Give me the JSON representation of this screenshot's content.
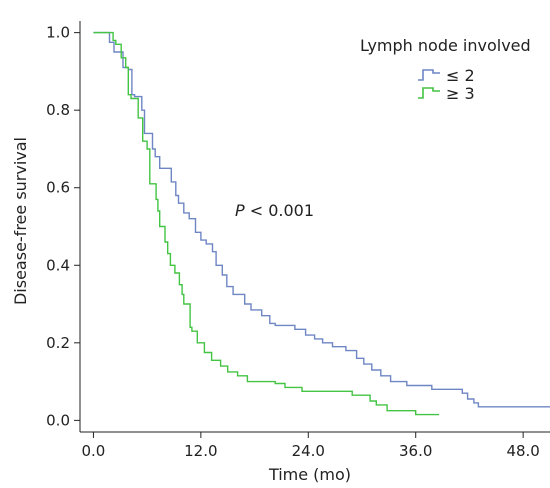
{
  "chart_data": {
    "type": "line",
    "step": true,
    "title": "",
    "xlabel": "Time (mo)",
    "ylabel": "Disease-free survival",
    "xlim": [
      -1.5,
      51
    ],
    "ylim": [
      -0.03,
      1.03
    ],
    "xticks": [
      0,
      12,
      24,
      36,
      48
    ],
    "xtick_labels": [
      "0.0",
      "12.0",
      "24.0",
      "36.0",
      "48.0"
    ],
    "yticks": [
      0,
      0.2,
      0.4,
      0.6,
      0.8,
      1.0
    ],
    "ytick_labels": [
      "0.0",
      "0.2",
      "0.4",
      "0.6",
      "0.8",
      "1.0"
    ],
    "grid": false,
    "legend": {
      "title": "Lymph node involved",
      "position": "top-right"
    },
    "annotation": {
      "p_italic": "P",
      "text": " < 0.001",
      "x": 15.5,
      "y": 0.535
    },
    "series": [
      {
        "name": "≤ 2",
        "color": "#6f86c4",
        "points": [
          [
            0,
            1.0
          ],
          [
            1.8,
            0.975
          ],
          [
            2.3,
            0.95
          ],
          [
            3.3,
            0.91
          ],
          [
            3.9,
            0.905
          ],
          [
            4.3,
            0.84
          ],
          [
            4.6,
            0.835
          ],
          [
            5.4,
            0.8
          ],
          [
            5.7,
            0.74
          ],
          [
            6.6,
            0.7
          ],
          [
            6.9,
            0.68
          ],
          [
            7.4,
            0.65
          ],
          [
            8.7,
            0.615
          ],
          [
            9.2,
            0.58
          ],
          [
            9.5,
            0.56
          ],
          [
            10.1,
            0.535
          ],
          [
            10.7,
            0.52
          ],
          [
            11.4,
            0.485
          ],
          [
            12.0,
            0.465
          ],
          [
            12.6,
            0.455
          ],
          [
            13.3,
            0.435
          ],
          [
            13.7,
            0.4
          ],
          [
            14.4,
            0.375
          ],
          [
            14.9,
            0.345
          ],
          [
            15.6,
            0.325
          ],
          [
            16.9,
            0.3
          ],
          [
            17.6,
            0.285
          ],
          [
            18.8,
            0.27
          ],
          [
            19.7,
            0.25
          ],
          [
            20.3,
            0.245
          ],
          [
            22.5,
            0.235
          ],
          [
            23.7,
            0.22
          ],
          [
            24.7,
            0.21
          ],
          [
            25.6,
            0.2
          ],
          [
            26.7,
            0.19
          ],
          [
            28.2,
            0.18
          ],
          [
            29.4,
            0.16
          ],
          [
            30.2,
            0.145
          ],
          [
            31.1,
            0.13
          ],
          [
            32.1,
            0.115
          ],
          [
            33.2,
            0.1
          ],
          [
            35.0,
            0.09
          ],
          [
            37.8,
            0.08
          ],
          [
            41.2,
            0.07
          ],
          [
            41.8,
            0.055
          ],
          [
            42.5,
            0.045
          ],
          [
            43.0,
            0.035
          ],
          [
            50.4,
            0.035
          ],
          [
            51,
            0.035
          ]
        ]
      },
      {
        "name": "≥ 3",
        "color": "#43c443",
        "points": [
          [
            0,
            1.0
          ],
          [
            2.2,
            0.98
          ],
          [
            2.5,
            0.97
          ],
          [
            3.1,
            0.935
          ],
          [
            3.6,
            0.91
          ],
          [
            3.9,
            0.84
          ],
          [
            4.2,
            0.83
          ],
          [
            5.0,
            0.78
          ],
          [
            5.5,
            0.72
          ],
          [
            6.0,
            0.7
          ],
          [
            6.3,
            0.61
          ],
          [
            7.0,
            0.57
          ],
          [
            7.2,
            0.54
          ],
          [
            7.4,
            0.5
          ],
          [
            8.0,
            0.46
          ],
          [
            8.3,
            0.43
          ],
          [
            8.6,
            0.4
          ],
          [
            9.1,
            0.38
          ],
          [
            9.6,
            0.35
          ],
          [
            9.9,
            0.325
          ],
          [
            10.1,
            0.3
          ],
          [
            10.8,
            0.24
          ],
          [
            11.0,
            0.23
          ],
          [
            11.6,
            0.2
          ],
          [
            12.4,
            0.175
          ],
          [
            13.2,
            0.155
          ],
          [
            14.2,
            0.14
          ],
          [
            15.0,
            0.125
          ],
          [
            16.1,
            0.115
          ],
          [
            17.2,
            0.1
          ],
          [
            20.3,
            0.095
          ],
          [
            21.4,
            0.085
          ],
          [
            23.3,
            0.075
          ],
          [
            28.9,
            0.065
          ],
          [
            30.9,
            0.05
          ],
          [
            31.6,
            0.04
          ],
          [
            32.8,
            0.025
          ],
          [
            36.0,
            0.015
          ],
          [
            38.6,
            0.015
          ]
        ]
      }
    ]
  }
}
